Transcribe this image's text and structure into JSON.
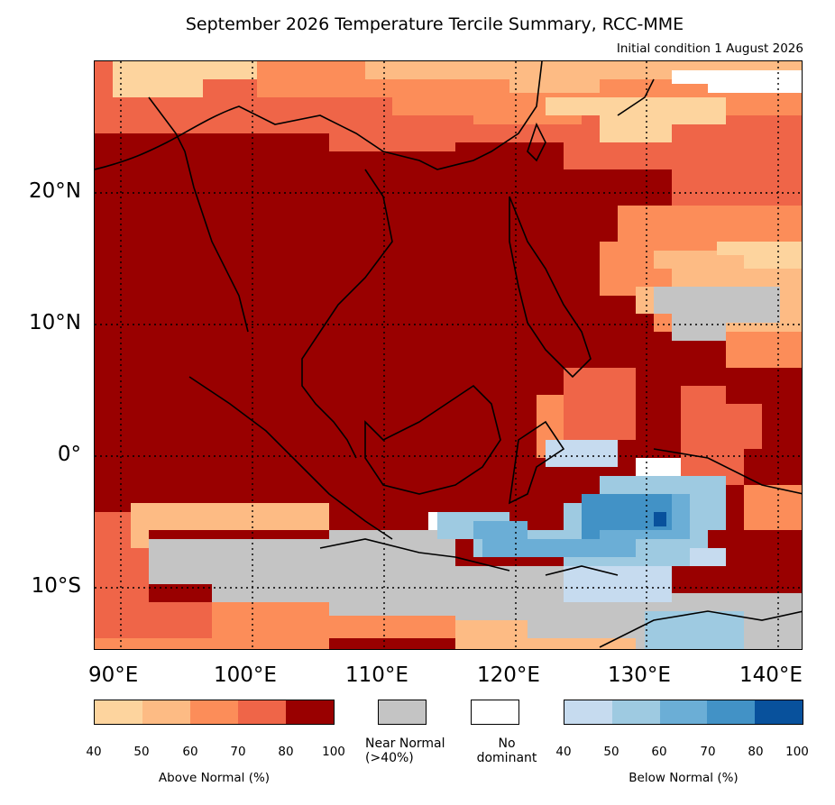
{
  "title": "September 2026 Temperature Tercile Summary, RCC-MME",
  "subtitle": "Initial condition 1 August 2026",
  "map": {
    "lat_labels": [
      "20°N",
      "10°N",
      "0°",
      "10°S"
    ],
    "lon_labels": [
      "90°E",
      "100°E",
      "110°E",
      "120°E",
      "130°E",
      "140°E"
    ],
    "lon_range": [
      88,
      142
    ],
    "lat_range": [
      -15,
      30
    ],
    "gridlines": "dotted"
  },
  "colors": {
    "above": [
      "#fdd49e",
      "#fdbb84",
      "#fc8d59",
      "#ef6548",
      "#990000"
    ],
    "near_normal": "#c4c4c4",
    "no_dominant": "#ffffff",
    "below": [
      "#c6dbef",
      "#9ecae1",
      "#6baed6",
      "#4292c6",
      "#08519c"
    ]
  },
  "legend": {
    "above_label": "Above Normal (%)",
    "above_ticks": [
      "40",
      "50",
      "60",
      "70",
      "80",
      "100"
    ],
    "near_normal_label_1": "Near Normal",
    "near_normal_label_2": "(>40%)",
    "no_dominant_label_1": "No",
    "no_dominant_label_2": "dominant",
    "below_label": "Below Normal (%)",
    "below_ticks": [
      "40",
      "50",
      "60",
      "70",
      "80",
      "100"
    ]
  }
}
